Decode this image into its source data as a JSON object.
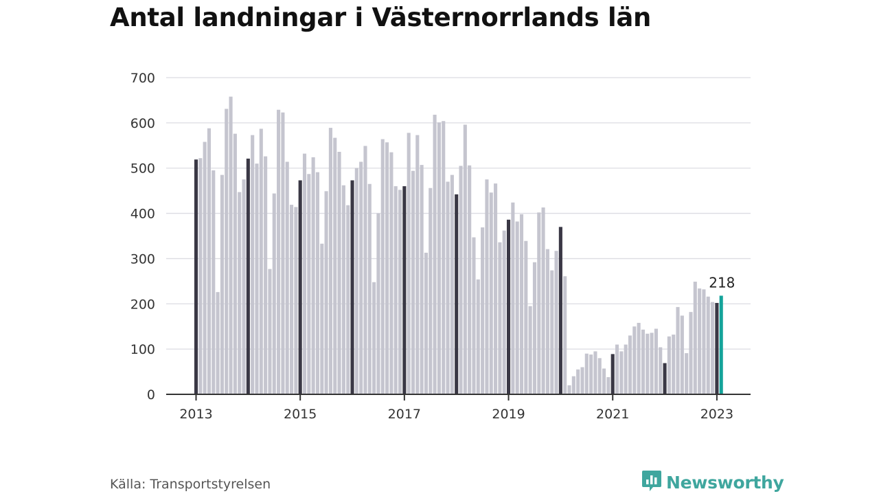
{
  "title": "Antal landningar i Västernorrlands län",
  "source": "Källa: Transportstyrelsen",
  "brand": {
    "name": "Newsworthy",
    "icon": "newsworthy-chart-bubble-icon",
    "color": "#3fa69e"
  },
  "colors": {
    "regular": "#c5c5cf",
    "january": "#3a3845",
    "latest": "#14a39a",
    "grid": "#dcdce2",
    "axis": "#333333"
  },
  "chart_data": {
    "type": "bar",
    "x_start": "2013-01",
    "x_end": "2023-02",
    "frequency": "monthly",
    "highlight": "January of each year shown in dark; latest month highlighted",
    "xticks": [
      "2013",
      "2015",
      "2017",
      "2019",
      "2021",
      "2023"
    ],
    "yticks": [
      0,
      100,
      200,
      300,
      400,
      500,
      600,
      700
    ],
    "ylim": [
      0,
      700
    ],
    "grid": true,
    "annotation": {
      "label": "218",
      "month": "2023-02"
    },
    "values": [
      519,
      522,
      558,
      588,
      495,
      226,
      485,
      631,
      658,
      576,
      447,
      475,
      521,
      573,
      510,
      587,
      526,
      277,
      444,
      629,
      623,
      514,
      419,
      414,
      473,
      532,
      487,
      524,
      491,
      333,
      449,
      589,
      567,
      536,
      462,
      418,
      473,
      500,
      514,
      549,
      465,
      248,
      400,
      564,
      557,
      535,
      460,
      452,
      460,
      578,
      494,
      573,
      507,
      313,
      456,
      618,
      601,
      604,
      470,
      485,
      442,
      505,
      596,
      506,
      347,
      254,
      369,
      475,
      446,
      466,
      336,
      362,
      386,
      424,
      382,
      398,
      339,
      195,
      292,
      402,
      413,
      321,
      274,
      317,
      370,
      261,
      20,
      40,
      55,
      60,
      90,
      88,
      95,
      80,
      57,
      38,
      89,
      110,
      95,
      110,
      130,
      150,
      158,
      143,
      134,
      136,
      145,
      104,
      69,
      128,
      132,
      193,
      174,
      91,
      182,
      249,
      234,
      232,
      216,
      204,
      202,
      218
    ]
  }
}
